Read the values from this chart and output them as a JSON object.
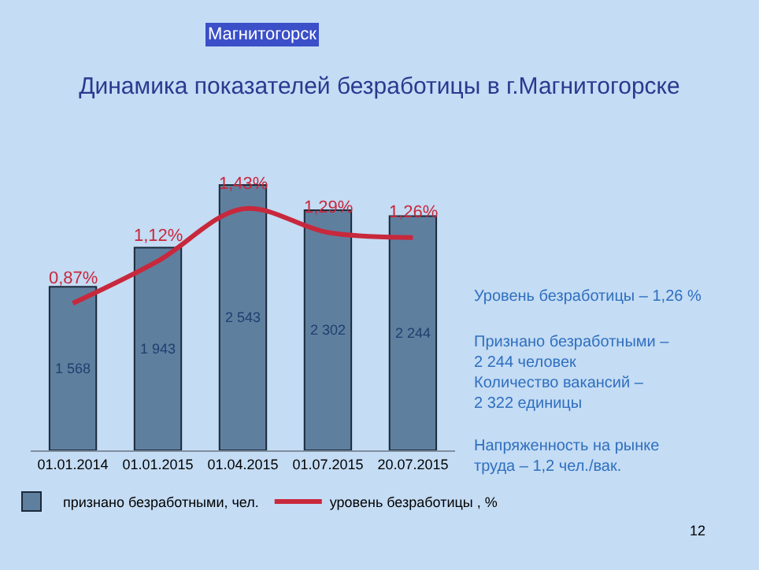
{
  "chart_data": {
    "type": "bar",
    "title": "Динамика показателей безработицы в г.Магнитогорске",
    "categories": [
      "01.01.2014",
      "01.01.2015",
      "01.04.2015",
      "01.07.2015",
      "20.07.2015"
    ],
    "series": [
      {
        "name": "признано безработными, чел.",
        "color": "#5f7f9f",
        "values": [
          1568,
          1943,
          2543,
          2302,
          2244
        ],
        "value_labels": [
          "1 568",
          "1 943",
          "2 543",
          "2 302",
          "2 244"
        ]
      },
      {
        "name": "уровень безработицы , %",
        "type": "line",
        "axis": "y2",
        "color": "#c8283c",
        "values": [
          0.87,
          1.12,
          1.43,
          1.29,
          1.26
        ],
        "value_labels": [
          "0,87%",
          "1,12%",
          "1,43%",
          "1,29%",
          "1,26%"
        ]
      }
    ],
    "tick_labels": "x",
    "grid": false,
    "legend": "bottom",
    "marker": "none",
    "line_style": "solid",
    "annotations": [
      "Магнитогорск",
      "Уровень безработицы – 1,26 %",
      "Признано безработными –\n2 244 человек",
      "Количество вакансий –\n2 322 единицы",
      "Напряженность на рынке\nтруда – 1,2 чел./вак.",
      "12"
    ]
  }
}
